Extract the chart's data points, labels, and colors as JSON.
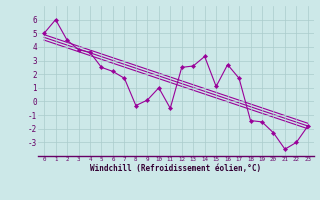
{
  "xlabel": "Windchill (Refroidissement éolien,°C)",
  "x_data": [
    0,
    1,
    2,
    3,
    4,
    5,
    6,
    7,
    8,
    9,
    10,
    11,
    12,
    13,
    14,
    15,
    16,
    17,
    18,
    19,
    20,
    21,
    22,
    23
  ],
  "y_data": [
    5.0,
    6.0,
    4.5,
    3.8,
    3.6,
    2.5,
    2.2,
    1.7,
    -0.3,
    0.1,
    1.0,
    -0.5,
    2.5,
    2.6,
    3.3,
    1.1,
    2.7,
    1.7,
    -1.4,
    -1.5,
    -2.3,
    -3.5,
    -3.0,
    -1.8
  ],
  "line_color": "#990099",
  "bg_color": "#cce8e8",
  "grid_color": "#aacccc",
  "ylim": [
    -4,
    7
  ],
  "xlim": [
    -0.5,
    23.5
  ],
  "yticks": [
    -3,
    -2,
    -1,
    0,
    1,
    2,
    3,
    4,
    5,
    6
  ],
  "reg_lines": [
    {
      "x1": 0,
      "y1": 4.9,
      "x2": 23,
      "y2": -1.6
    },
    {
      "x1": 0,
      "y1": 4.7,
      "x2": 23,
      "y2": -1.8
    },
    {
      "x1": 0,
      "y1": 4.5,
      "x2": 23,
      "y2": -2.0
    }
  ]
}
